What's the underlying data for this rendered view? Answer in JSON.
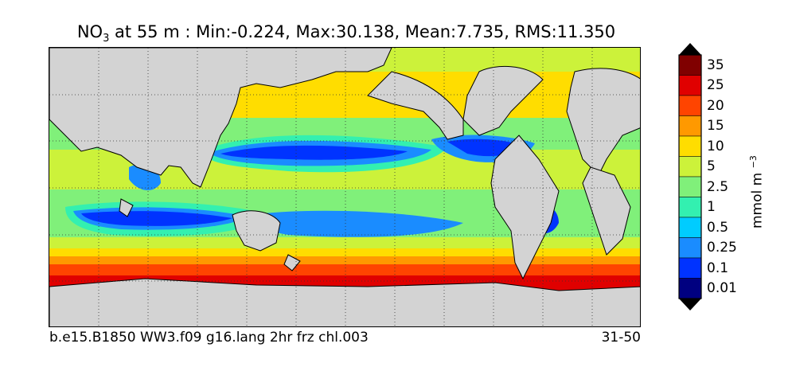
{
  "title": {
    "variable": "NO",
    "subscript": "3",
    "rest": " at 55 m : Min:-0.224, Max:30.138, Mean:7.735, RMS:11.350"
  },
  "footer": {
    "case_name": "b.e15.B1850 WW3.f09 g16.lang 2hr frz chl.003",
    "years": "31-50"
  },
  "colorbar": {
    "unit_text": "mmol m",
    "unit_exp": "−3",
    "labels": [
      "35",
      "25",
      "20",
      "15",
      "10",
      "5",
      "2.5",
      "1",
      "0.5",
      "0.25",
      "0.1",
      "0.01"
    ],
    "colors": [
      "#800000",
      "#e00000",
      "#ff4400",
      "#ff9900",
      "#ffdd00",
      "#ccf23a",
      "#80f07a",
      "#33f0b0",
      "#00ccff",
      "#1a8cff",
      "#0033ff",
      "#000080"
    ]
  },
  "map": {
    "land_color": "#d3d3d3",
    "gridlines": "dotted"
  },
  "chart_data": {
    "type": "heatmap",
    "title": "NO3 at 55 m : Min:-0.224, Max:30.138, Mean:7.735, RMS:11.350",
    "variable": "NO3",
    "depth": "55 m",
    "stats": {
      "min": -0.224,
      "max": 30.138,
      "mean": 7.735,
      "rms": 11.35
    },
    "units": "mmol m-3",
    "contour_levels": [
      0.01,
      0.1,
      0.25,
      0.5,
      1,
      2.5,
      5,
      10,
      15,
      20,
      25,
      35
    ],
    "colorbar_extend": "both",
    "projection": "global longitude-latitude",
    "grid": true
  }
}
